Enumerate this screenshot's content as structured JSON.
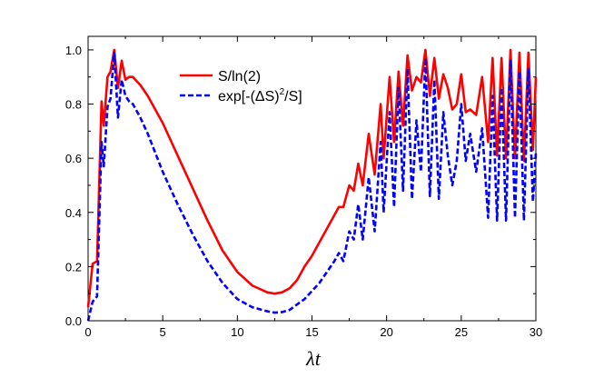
{
  "chart_data": {
    "type": "line",
    "title": "",
    "xlabel": "λt",
    "ylabel": "",
    "xlim": [
      0,
      30
    ],
    "ylim": [
      0,
      1.05
    ],
    "xticks": [
      0,
      5,
      10,
      15,
      20,
      25,
      30
    ],
    "xtick_labels": [
      "0",
      "5",
      "10",
      "15",
      "20",
      "25",
      "30"
    ],
    "yticks": [
      0,
      0.2,
      0.4,
      0.6,
      0.8,
      1.0
    ],
    "ytick_labels": [
      "0.0",
      "0.2",
      "0.4",
      "0.6",
      "0.8",
      "1.0"
    ],
    "grid": false,
    "legend_position": "top-center",
    "series": [
      {
        "name": "S/ln(2)",
        "color": "#ff0000",
        "style": "solid",
        "x": [
          0,
          0.3,
          0.6,
          0.9,
          1.05,
          1.3,
          1.5,
          1.75,
          2.0,
          2.25,
          2.5,
          2.75,
          3.0,
          3.5,
          4.0,
          5.0,
          6.0,
          7.0,
          8.0,
          9.0,
          10.0,
          11.0,
          12.0,
          12.5,
          13.0,
          13.5,
          14.0,
          14.5,
          15.0,
          15.5,
          16.0,
          16.5,
          16.8,
          17.1,
          17.5,
          17.8,
          18.1,
          18.4,
          18.8,
          19.2,
          19.6,
          19.8,
          20.2,
          20.5,
          20.8,
          21.1,
          21.4,
          21.7,
          22.0,
          22.3,
          22.6,
          22.9,
          23.2,
          23.5,
          23.8,
          24.1,
          24.4,
          24.7,
          25.0,
          25.3,
          25.6,
          26.0,
          26.4,
          26.8,
          27.1,
          27.4,
          27.7,
          28.0,
          28.3,
          28.6,
          28.9,
          29.2,
          29.5,
          29.8,
          30.0
        ],
        "y": [
          0.05,
          0.21,
          0.22,
          0.81,
          0.72,
          0.9,
          0.92,
          1.0,
          0.86,
          0.96,
          0.89,
          0.9,
          0.9,
          0.87,
          0.83,
          0.73,
          0.61,
          0.49,
          0.37,
          0.26,
          0.18,
          0.13,
          0.105,
          0.1,
          0.105,
          0.12,
          0.15,
          0.2,
          0.24,
          0.29,
          0.34,
          0.39,
          0.42,
          0.42,
          0.5,
          0.48,
          0.58,
          0.5,
          0.69,
          0.54,
          0.8,
          0.6,
          0.9,
          0.66,
          0.92,
          0.72,
          0.98,
          0.85,
          0.9,
          0.88,
          1.0,
          0.83,
          0.97,
          0.82,
          0.91,
          0.86,
          0.78,
          0.8,
          0.91,
          0.77,
          0.78,
          0.76,
          0.9,
          0.66,
          0.97,
          0.61,
          0.97,
          0.6,
          1.0,
          0.6,
          0.99,
          0.59,
          0.99,
          0.63,
          0.9
        ]
      },
      {
        "name": "exp[-(ΔS)²/S]",
        "color": "#0000ff",
        "style": "dashed",
        "x": [
          0,
          0.3,
          0.6,
          0.9,
          1.05,
          1.3,
          1.5,
          1.75,
          2.0,
          2.25,
          2.5,
          2.75,
          3.0,
          3.5,
          4.0,
          5.0,
          6.0,
          7.0,
          8.0,
          9.0,
          10.0,
          11.0,
          12.0,
          12.5,
          13.0,
          13.5,
          14.0,
          14.5,
          15.0,
          15.5,
          16.0,
          16.5,
          16.8,
          17.1,
          17.5,
          17.8,
          18.1,
          18.4,
          18.8,
          19.2,
          19.6,
          19.8,
          20.2,
          20.5,
          20.8,
          21.1,
          21.4,
          21.7,
          22.0,
          22.3,
          22.6,
          22.9,
          23.2,
          23.5,
          23.8,
          24.1,
          24.4,
          24.7,
          25.0,
          25.3,
          25.6,
          26.0,
          26.4,
          26.8,
          27.1,
          27.4,
          27.7,
          28.0,
          28.3,
          28.6,
          28.9,
          29.2,
          29.5,
          29.8,
          30.0
        ],
        "y": [
          0.0,
          0.07,
          0.09,
          0.66,
          0.57,
          0.79,
          0.82,
          0.99,
          0.75,
          0.89,
          0.83,
          0.81,
          0.8,
          0.75,
          0.69,
          0.55,
          0.43,
          0.32,
          0.22,
          0.14,
          0.08,
          0.05,
          0.035,
          0.03,
          0.032,
          0.04,
          0.06,
          0.08,
          0.11,
          0.14,
          0.18,
          0.22,
          0.25,
          0.22,
          0.33,
          0.3,
          0.43,
          0.3,
          0.53,
          0.33,
          0.66,
          0.4,
          0.77,
          0.42,
          0.86,
          0.48,
          0.93,
          0.45,
          0.74,
          0.55,
          0.97,
          0.46,
          0.89,
          0.45,
          0.77,
          0.61,
          0.5,
          0.59,
          0.8,
          0.59,
          0.69,
          0.55,
          0.71,
          0.38,
          0.83,
          0.37,
          0.86,
          0.37,
          0.96,
          0.38,
          0.92,
          0.37,
          0.93,
          0.44,
          0.62
        ]
      }
    ]
  }
}
